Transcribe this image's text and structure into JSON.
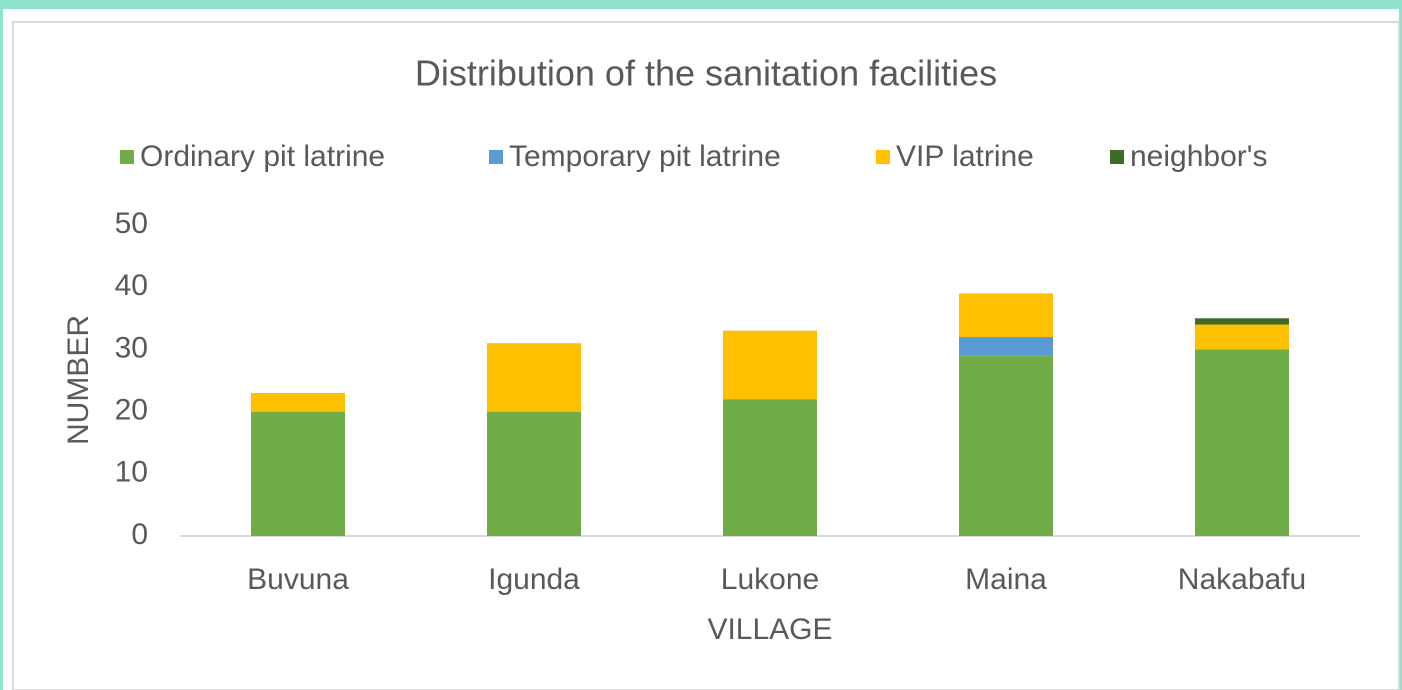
{
  "chart_data": {
    "type": "stacked_bar",
    "title": "Distribution of the sanitation facilities",
    "x_label": "VILLAGE",
    "y_label": "NUMBER",
    "categories": [
      "Buvuna",
      "Igunda",
      "Lukone",
      "Maina",
      "Nakabafu"
    ],
    "series": [
      {
        "name": "Ordinary pit latrine",
        "color": "#70ad47",
        "values": [
          20,
          20,
          22,
          29,
          30
        ]
      },
      {
        "name": "Temporary pit latrine",
        "color": "#5b9bd5",
        "values": [
          0,
          0,
          0,
          3,
          0
        ]
      },
      {
        "name": "VIP latrine",
        "color": "#ffc000",
        "values": [
          3,
          11,
          11,
          7,
          4
        ]
      },
      {
        "name": "neighbor's",
        "color": "#3f6b28",
        "values": [
          0,
          0,
          0,
          0,
          1
        ]
      }
    ],
    "ylim": [
      0,
      50
    ],
    "yticks": [
      0,
      10,
      20,
      30,
      40,
      50
    ],
    "grid": false,
    "legend": "top"
  }
}
